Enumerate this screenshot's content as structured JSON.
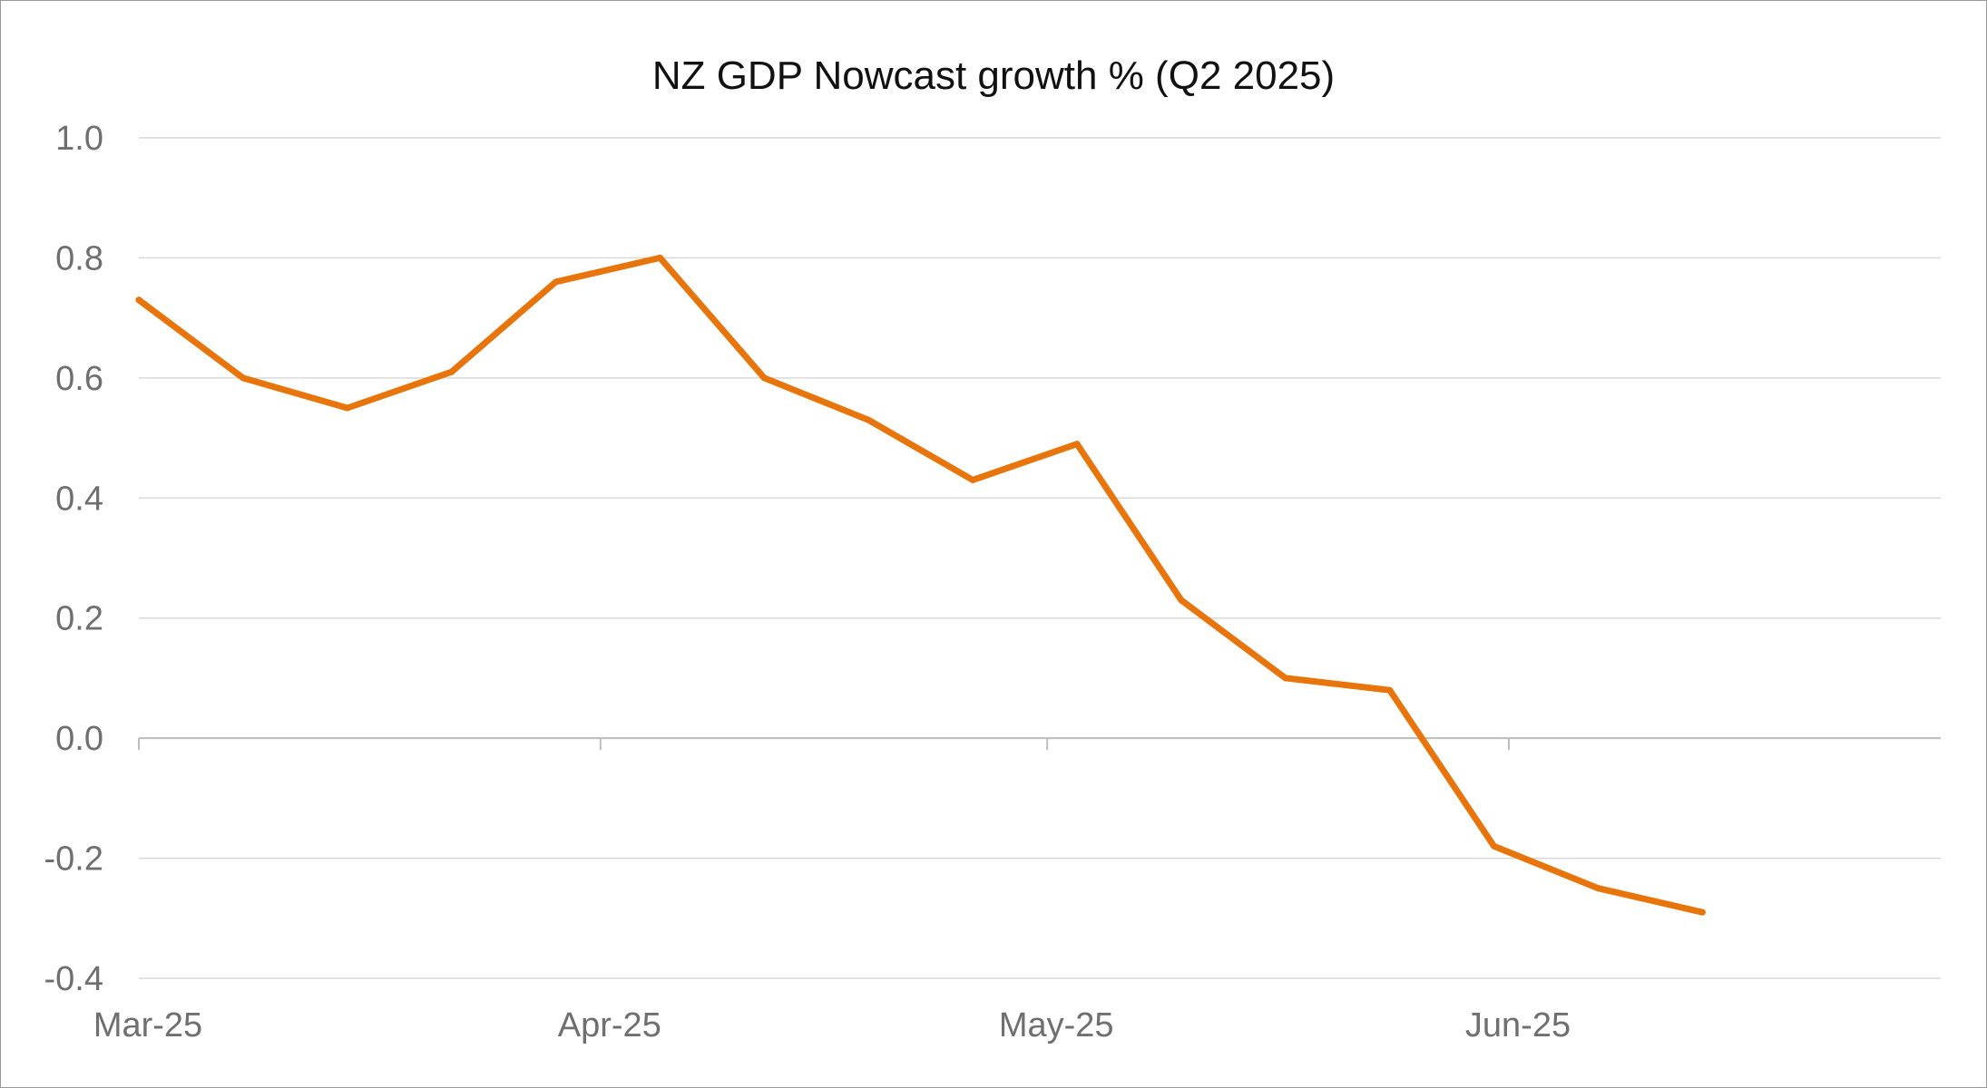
{
  "chart_data": {
    "type": "line",
    "title": "NZ GDP Nowcast growth % (Q2 2025)",
    "xlabel": "",
    "ylabel": "",
    "ylim": [
      -0.4,
      1.0
    ],
    "yticks": [
      "1.0",
      "0.8",
      "0.6",
      "0.4",
      "0.2",
      "0.0",
      "-0.2",
      "-0.4"
    ],
    "ytick_values": [
      1.0,
      0.8,
      0.6,
      0.4,
      0.2,
      0.0,
      -0.2,
      -0.4
    ],
    "xtick_labels": [
      "Mar-25",
      "Apr-25",
      "May-25",
      "Jun-25"
    ],
    "xtick_dates": [
      "2025-03-01",
      "2025-04-01",
      "2025-05-01",
      "2025-06-01"
    ],
    "xlim": [
      "2025-03-01",
      "2025-06-30"
    ],
    "grid": true,
    "legend": "none",
    "series": [
      {
        "color": "#E8740C",
        "x": [
          "2025-03-01",
          "2025-03-08",
          "2025-03-15",
          "2025-03-22",
          "2025-03-29",
          "2025-04-05",
          "2025-04-12",
          "2025-04-19",
          "2025-04-26",
          "2025-05-03",
          "2025-05-10",
          "2025-05-17",
          "2025-05-24",
          "2025-05-31",
          "2025-06-07",
          "2025-06-14"
        ],
        "values": [
          0.73,
          0.6,
          0.55,
          0.61,
          0.76,
          0.8,
          0.6,
          0.53,
          0.43,
          0.49,
          0.23,
          0.1,
          0.08,
          -0.18,
          -0.25,
          -0.29
        ]
      }
    ]
  }
}
